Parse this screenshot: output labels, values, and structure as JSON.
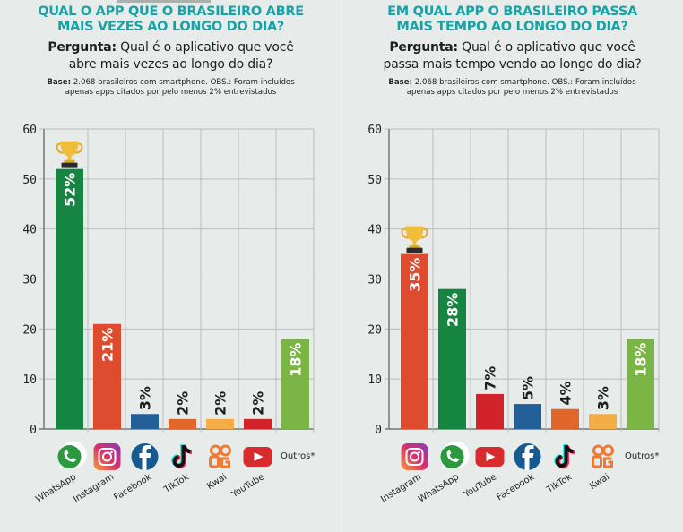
{
  "charts_meta": {
    "left": {
      "title_line1": "QUAL O APP QUE O BRASILEIRO ABRE",
      "title_line2": "MAIS VEZES AO LONGO DO DIA?",
      "question_label": "Pergunta:",
      "question_line1": " Qual é o aplicativo que você",
      "question_line2": "abre mais vezes ao longo do dia?",
      "base_label": "Base:",
      "base_line1": " 2.068 brasileiros com smartphone. OBS.: Foram incluídos",
      "base_line2": "apenas apps citados por pelo menos 2% entrevistados"
    },
    "right": {
      "title_line1": "EM QUAL APP O BRASILEIRO PASSA",
      "title_line2": "MAIS TEMPO AO LONGO DO DIA?",
      "question_label": "Pergunta:",
      "question_line1": " Qual é o aplicativo que você",
      "question_line2": "passa mais tempo vendo ao longo do dia?",
      "base_label": "Base:",
      "base_line1": " 2.068 brasileiros com smartphone. OBS.: Foram incluídos",
      "base_line2": "apenas apps citados por pelo menos 2% entrevistados"
    }
  },
  "chart_data": [
    {
      "type": "bar",
      "title": "QUAL O APP QUE O BRASILEIRO ABRE MAIS VEZES AO LONGO DO DIA?",
      "categories": [
        "WhatsApp",
        "Instagram",
        "Facebook",
        "TikTok",
        "Kwai",
        "YouTube",
        "Outros*"
      ],
      "icons": [
        "whatsapp-icon",
        "instagram-icon",
        "facebook-icon",
        "tiktok-icon",
        "kwai-icon",
        "youtube-icon",
        ""
      ],
      "values": [
        52,
        21,
        3,
        2,
        2,
        2,
        18
      ],
      "data_labels": [
        "52%",
        "21%",
        "3%",
        "2%",
        "2%",
        "2%",
        "18%"
      ],
      "colors": [
        "#178542",
        "#df4b2f",
        "#235f99",
        "#e0662c",
        "#f2ad46",
        "#d0232a",
        "#7ab546"
      ],
      "highlight": "WhatsApp",
      "ylim": [
        0,
        60
      ],
      "yticks": [
        0,
        10,
        20,
        30,
        40,
        50,
        60
      ],
      "grid": true,
      "xlabel": "",
      "ylabel": ""
    },
    {
      "type": "bar",
      "title": "EM QUAL APP O BRASILEIRO PASSA MAIS TEMPO AO LONGO DO DIA?",
      "categories": [
        "Instagram",
        "WhatsApp",
        "YouTube",
        "Facebook",
        "TikTok",
        "Kwai",
        "Outros*"
      ],
      "icons": [
        "instagram-icon",
        "whatsapp-icon",
        "youtube-icon",
        "facebook-icon",
        "tiktok-icon",
        "kwai-icon",
        ""
      ],
      "values": [
        35,
        28,
        7,
        5,
        4,
        3,
        18
      ],
      "data_labels": [
        "35%",
        "28%",
        "7%",
        "5%",
        "4%",
        "3%",
        "18%"
      ],
      "colors": [
        "#df4b2f",
        "#178542",
        "#d0232a",
        "#235f99",
        "#e0662c",
        "#f2ad46",
        "#7ab546"
      ],
      "highlight": "Instagram",
      "ylim": [
        0,
        60
      ],
      "yticks": [
        0,
        10,
        20,
        30,
        40,
        50,
        60
      ],
      "grid": true,
      "xlabel": "",
      "ylabel": ""
    }
  ]
}
